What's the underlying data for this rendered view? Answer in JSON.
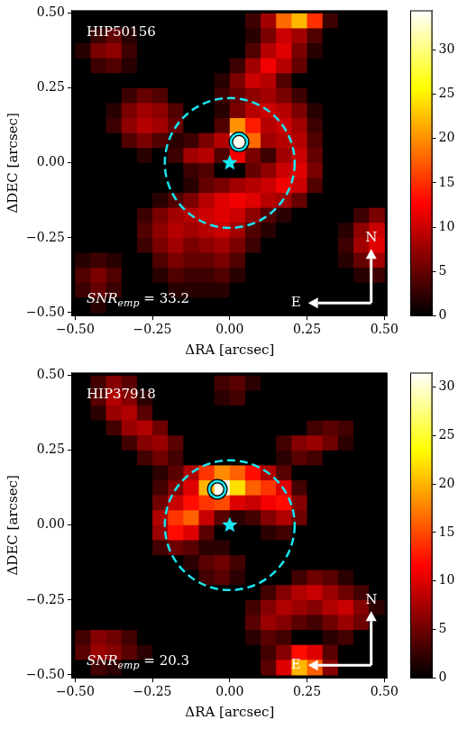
{
  "chart_data": [
    {
      "type": "heatmap",
      "title": "HIP50156",
      "color": "hot",
      "grid": false,
      "x_label": "ΔRA [arcsec]",
      "y_label": "ΔDEC [arcsec]",
      "xlim": [
        -0.51,
        0.51
      ],
      "ylim": [
        -0.51,
        0.51
      ],
      "xticks": [
        {
          "value": -0.5,
          "label": "−0.50"
        },
        {
          "value": -0.25,
          "label": "−0.25"
        },
        {
          "value": 0,
          "label": "0.00"
        },
        {
          "value": 0.25,
          "label": "0.25"
        },
        {
          "value": 0.5,
          "label": "0.50"
        }
      ],
      "yticks": [
        {
          "value": -0.5,
          "label": "−0.50"
        },
        {
          "value": -0.25,
          "label": "−0.25"
        },
        {
          "value": 0,
          "label": "0.00"
        },
        {
          "value": 0.25,
          "label": "0.25"
        },
        {
          "value": 0.5,
          "label": "0.50"
        }
      ],
      "x": [
        -0.475,
        -0.425,
        -0.375,
        -0.325,
        -0.275,
        -0.225,
        -0.175,
        -0.125,
        -0.075,
        -0.025,
        0.025,
        0.075,
        0.125,
        0.175,
        0.225,
        0.275,
        0.325,
        0.375,
        0.425,
        0.475
      ],
      "y": [
        0.475,
        0.425,
        0.375,
        0.325,
        0.275,
        0.225,
        0.175,
        0.125,
        0.075,
        0.025,
        -0.025,
        -0.075,
        -0.125,
        -0.175,
        -0.225,
        -0.275,
        -0.325,
        -0.375,
        -0.425,
        -0.475
      ],
      "z": [
        [
          0,
          0,
          0,
          0,
          0,
          0,
          0,
          0,
          0,
          0,
          0,
          3,
          8,
          18,
          22,
          15,
          3,
          0,
          0,
          0
        ],
        [
          0,
          3,
          5,
          2,
          0,
          0,
          0,
          0,
          0,
          0,
          0,
          2,
          6,
          10,
          8,
          4,
          0,
          0,
          0,
          0
        ],
        [
          2,
          6,
          7,
          3,
          0,
          0,
          0,
          0,
          0,
          0,
          0,
          4,
          9,
          11,
          6,
          2,
          0,
          0,
          0,
          0
        ],
        [
          0,
          3,
          4,
          2,
          0,
          0,
          0,
          0,
          0,
          0,
          3,
          8,
          12,
          9,
          5,
          0,
          0,
          0,
          0,
          0
        ],
        [
          0,
          0,
          0,
          0,
          0,
          0,
          0,
          0,
          0,
          2,
          6,
          10,
          9,
          4,
          0,
          0,
          0,
          0,
          0,
          0
        ],
        [
          0,
          0,
          0,
          3,
          5,
          4,
          0,
          0,
          0,
          3,
          5,
          7,
          8,
          6,
          3,
          0,
          0,
          0,
          0,
          0
        ],
        [
          0,
          0,
          2,
          6,
          8,
          7,
          4,
          0,
          0,
          2,
          6,
          9,
          10,
          9,
          6,
          2,
          0,
          0,
          0,
          0
        ],
        [
          0,
          0,
          3,
          7,
          9,
          8,
          5,
          0,
          0,
          4,
          20,
          14,
          9,
          10,
          8,
          3,
          0,
          0,
          0,
          0
        ],
        [
          0,
          0,
          0,
          4,
          6,
          4,
          2,
          3,
          6,
          9,
          34,
          18,
          8,
          9,
          9,
          4,
          0,
          0,
          0,
          0
        ],
        [
          0,
          0,
          0,
          0,
          2,
          0,
          3,
          8,
          9,
          4,
          12,
          6,
          3,
          8,
          10,
          5,
          0,
          0,
          0,
          0
        ],
        [
          0,
          0,
          0,
          0,
          0,
          0,
          0,
          3,
          4,
          0,
          0,
          5,
          7,
          10,
          11,
          6,
          0,
          0,
          0,
          0
        ],
        [
          0,
          0,
          0,
          0,
          0,
          0,
          0,
          2,
          5,
          6,
          8,
          9,
          10,
          12,
          10,
          4,
          0,
          0,
          0,
          0
        ],
        [
          0,
          0,
          0,
          0,
          0,
          2,
          4,
          6,
          9,
          11,
          12,
          11,
          9,
          8,
          5,
          0,
          0,
          0,
          0,
          0
        ],
        [
          0,
          0,
          0,
          0,
          3,
          6,
          8,
          9,
          10,
          11,
          10,
          7,
          4,
          2,
          0,
          0,
          0,
          0,
          3,
          6
        ],
        [
          0,
          0,
          0,
          0,
          4,
          7,
          9,
          8,
          9,
          10,
          8,
          4,
          2,
          0,
          0,
          0,
          0,
          2,
          7,
          10
        ],
        [
          0,
          0,
          0,
          0,
          3,
          6,
          8,
          6,
          7,
          8,
          6,
          3,
          0,
          0,
          0,
          0,
          0,
          3,
          8,
          11
        ],
        [
          2,
          3,
          2,
          0,
          0,
          4,
          6,
          5,
          5,
          6,
          4,
          0,
          0,
          0,
          0,
          0,
          0,
          2,
          5,
          8
        ],
        [
          4,
          6,
          4,
          0,
          0,
          2,
          4,
          3,
          3,
          4,
          2,
          0,
          0,
          0,
          0,
          0,
          0,
          0,
          2,
          3
        ],
        [
          3,
          5,
          3,
          0,
          0,
          0,
          2,
          2,
          2,
          2,
          0,
          0,
          0,
          0,
          0,
          0,
          0,
          0,
          0,
          0
        ],
        [
          0,
          2,
          0,
          0,
          0,
          0,
          0,
          0,
          0,
          0,
          0,
          0,
          0,
          0,
          0,
          0,
          0,
          0,
          0,
          0
        ]
      ],
      "colorbar": {
        "range": [
          0,
          34.5
        ],
        "ticks": [
          0,
          5,
          10,
          15,
          20,
          25,
          30
        ]
      },
      "companion": {
        "x": 0.03,
        "y": 0.07
      },
      "star": {
        "x": 0,
        "y": 0
      },
      "circle_radius": 0.21,
      "snr": {
        "text": "SNR",
        "subscript": "emp",
        "suffix": " = 33.2"
      },
      "compass": {
        "north": "N",
        "east": "E"
      }
    },
    {
      "type": "heatmap",
      "title": "HIP37918",
      "color": "hot",
      "grid": false,
      "x_label": "ΔRA [arcsec]",
      "y_label": "ΔDEC [arcsec]",
      "xlim": [
        -0.51,
        0.51
      ],
      "ylim": [
        -0.51,
        0.51
      ],
      "xticks": [
        {
          "value": -0.5,
          "label": "−0.50"
        },
        {
          "value": -0.25,
          "label": "−0.25"
        },
        {
          "value": 0,
          "label": "0.00"
        },
        {
          "value": 0.25,
          "label": "0.25"
        },
        {
          "value": 0.5,
          "label": "0.50"
        }
      ],
      "yticks": [
        {
          "value": -0.5,
          "label": "−0.50"
        },
        {
          "value": -0.25,
          "label": "−0.25"
        },
        {
          "value": 0,
          "label": "0.00"
        },
        {
          "value": 0.25,
          "label": "0.25"
        },
        {
          "value": 0.5,
          "label": "0.50"
        }
      ],
      "x": [
        -0.475,
        -0.425,
        -0.375,
        -0.325,
        -0.275,
        -0.225,
        -0.175,
        -0.125,
        -0.075,
        -0.025,
        0.025,
        0.075,
        0.125,
        0.175,
        0.225,
        0.275,
        0.325,
        0.375,
        0.425,
        0.475
      ],
      "y": [
        0.475,
        0.425,
        0.375,
        0.325,
        0.275,
        0.225,
        0.175,
        0.125,
        0.075,
        0.025,
        -0.025,
        -0.075,
        -0.125,
        -0.175,
        -0.225,
        -0.275,
        -0.325,
        -0.375,
        -0.425,
        -0.475
      ],
      "z": [
        [
          0,
          3,
          6,
          4,
          0,
          0,
          0,
          0,
          0,
          3,
          4,
          2,
          0,
          0,
          0,
          0,
          0,
          0,
          0,
          0
        ],
        [
          0,
          4,
          8,
          6,
          2,
          0,
          0,
          0,
          0,
          2,
          3,
          0,
          0,
          0,
          0,
          0,
          0,
          0,
          0,
          0
        ],
        [
          0,
          2,
          7,
          8,
          4,
          0,
          0,
          0,
          0,
          0,
          0,
          0,
          0,
          0,
          0,
          0,
          0,
          0,
          0,
          0
        ],
        [
          0,
          0,
          3,
          7,
          8,
          5,
          0,
          0,
          0,
          0,
          0,
          0,
          0,
          0,
          0,
          3,
          4,
          3,
          0,
          0
        ],
        [
          0,
          0,
          0,
          3,
          6,
          7,
          4,
          0,
          0,
          0,
          0,
          0,
          0,
          3,
          6,
          7,
          5,
          2,
          0,
          0
        ],
        [
          0,
          0,
          0,
          0,
          3,
          5,
          3,
          0,
          0,
          0,
          0,
          0,
          0,
          2,
          4,
          3,
          0,
          0,
          0,
          0
        ],
        [
          0,
          0,
          0,
          0,
          0,
          2,
          4,
          8,
          14,
          18,
          16,
          12,
          8,
          4,
          0,
          0,
          0,
          0,
          0,
          0
        ],
        [
          0,
          0,
          0,
          0,
          0,
          3,
          6,
          10,
          20,
          31,
          22,
          16,
          14,
          10,
          3,
          0,
          0,
          0,
          0,
          0
        ],
        [
          0,
          0,
          0,
          0,
          0,
          5,
          9,
          12,
          14,
          15,
          10,
          9,
          11,
          12,
          6,
          0,
          0,
          0,
          0,
          0
        ],
        [
          0,
          0,
          0,
          0,
          0,
          8,
          14,
          16,
          9,
          4,
          2,
          3,
          6,
          8,
          5,
          0,
          0,
          0,
          0,
          0
        ],
        [
          0,
          0,
          0,
          0,
          0,
          7,
          12,
          10,
          4,
          0,
          0,
          0,
          2,
          3,
          0,
          0,
          0,
          0,
          0,
          0
        ],
        [
          0,
          0,
          0,
          0,
          0,
          3,
          5,
          4,
          2,
          2,
          0,
          0,
          0,
          0,
          0,
          0,
          0,
          0,
          0,
          0
        ],
        [
          0,
          0,
          0,
          0,
          0,
          0,
          0,
          2,
          4,
          5,
          3,
          0,
          0,
          0,
          0,
          0,
          0,
          0,
          0,
          0
        ],
        [
          0,
          0,
          0,
          0,
          0,
          0,
          0,
          0,
          3,
          4,
          2,
          0,
          0,
          0,
          3,
          5,
          4,
          2,
          0,
          0
        ],
        [
          0,
          0,
          0,
          0,
          0,
          0,
          0,
          0,
          0,
          0,
          0,
          0,
          3,
          6,
          8,
          9,
          7,
          5,
          3,
          0
        ],
        [
          0,
          0,
          0,
          0,
          0,
          0,
          0,
          0,
          0,
          0,
          0,
          3,
          6,
          8,
          7,
          6,
          8,
          9,
          6,
          2
        ],
        [
          0,
          0,
          0,
          0,
          0,
          0,
          0,
          0,
          0,
          0,
          0,
          4,
          7,
          6,
          4,
          3,
          5,
          7,
          5,
          0
        ],
        [
          3,
          6,
          5,
          3,
          0,
          0,
          0,
          0,
          0,
          0,
          0,
          2,
          4,
          3,
          0,
          0,
          2,
          3,
          0,
          0
        ],
        [
          4,
          7,
          6,
          4,
          2,
          0,
          0,
          0,
          0,
          0,
          0,
          0,
          3,
          6,
          12,
          10,
          4,
          0,
          0,
          0
        ],
        [
          0,
          3,
          2,
          0,
          0,
          0,
          0,
          0,
          0,
          0,
          0,
          0,
          4,
          10,
          20,
          16,
          6,
          0,
          0,
          0
        ]
      ],
      "colorbar": {
        "range": [
          0,
          31.5
        ],
        "ticks": [
          0,
          5,
          10,
          15,
          20,
          25,
          30
        ]
      },
      "companion": {
        "x": -0.04,
        "y": 0.12
      },
      "star": {
        "x": 0,
        "y": 0
      },
      "circle_radius": 0.21,
      "snr": {
        "text": "SNR",
        "subscript": "emp",
        "suffix": " = 20.3"
      },
      "compass": {
        "north": "N",
        "east": "E"
      }
    }
  ]
}
